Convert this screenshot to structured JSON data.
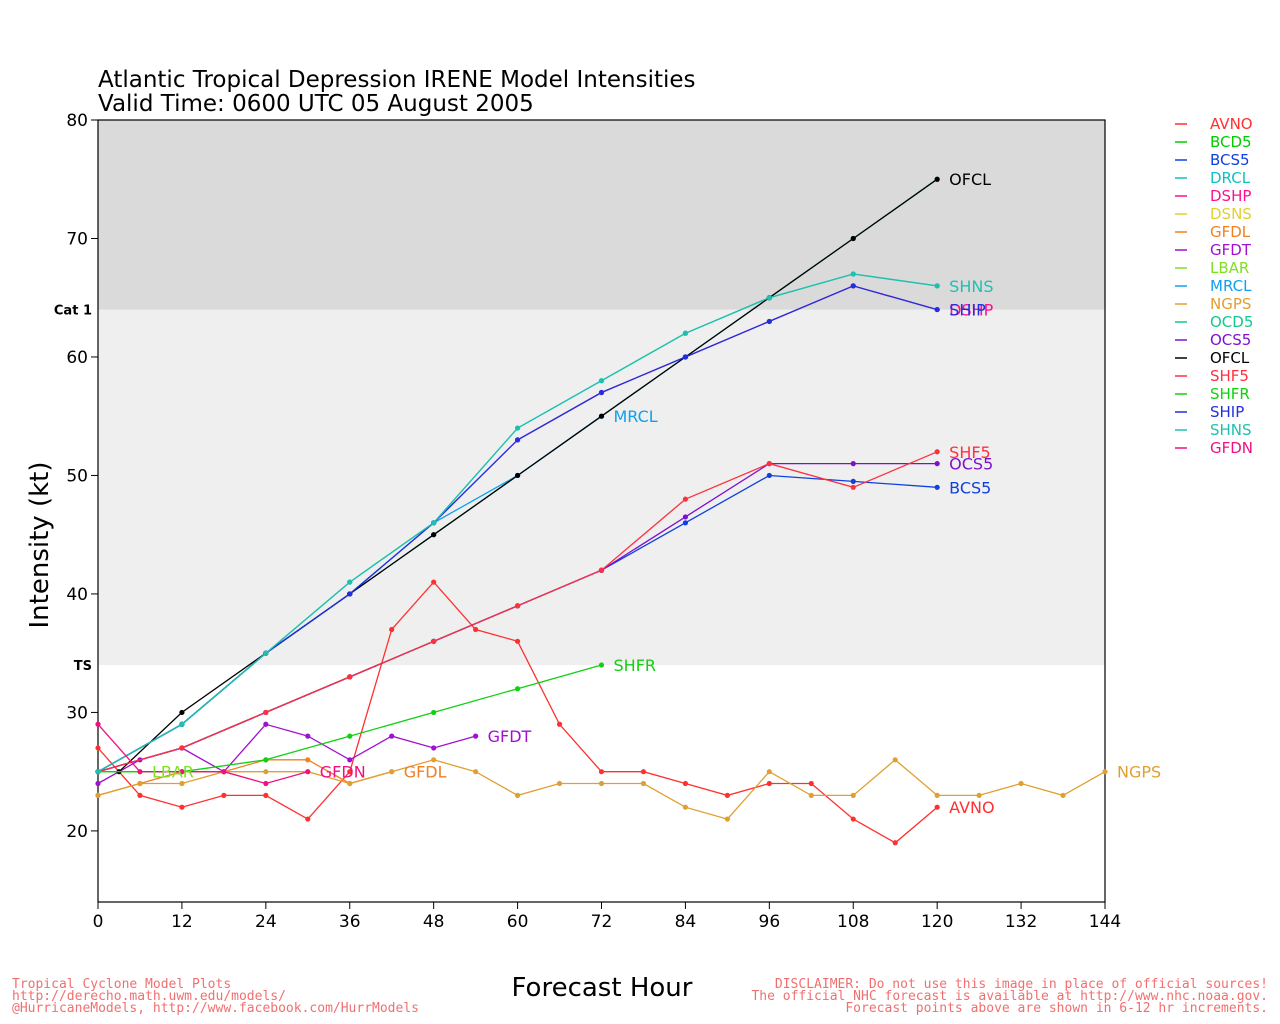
{
  "chart_data": {
    "type": "line",
    "title": "Atlantic Tropical Depression IRENE Model Intensities",
    "subtitle": "Valid Time: 0600 UTC 05 August 2005",
    "xlabel": "Forecast Hour",
    "ylabel": "Intensity (kt)",
    "xlim": [
      0,
      144
    ],
    "ylim": [
      14,
      80
    ],
    "xticks": [
      0,
      12,
      24,
      36,
      48,
      60,
      72,
      84,
      96,
      108,
      120,
      132,
      144
    ],
    "yticks": [
      20,
      30,
      40,
      50,
      60,
      70,
      80
    ],
    "grid": false,
    "legend_position": "right",
    "bands": [
      {
        "from": 14,
        "to": 34,
        "color": "#ffffff"
      },
      {
        "from": 34,
        "to": 64,
        "color": "#efefef",
        "label": "TS"
      },
      {
        "from": 64,
        "to": 80,
        "color": "#dadada",
        "label": "Cat 1"
      }
    ],
    "series": [
      {
        "name": "AVNO",
        "color": "#ff3030",
        "label": "AVNO",
        "x": [
          0,
          6,
          12,
          18,
          24,
          30,
          36,
          42,
          48,
          54,
          60,
          66,
          72,
          78,
          84,
          90,
          96,
          102,
          108,
          114,
          120
        ],
        "values": [
          27,
          23,
          22,
          23,
          23,
          21,
          25,
          37,
          41,
          37,
          36,
          29,
          25,
          25,
          24,
          23,
          24,
          24,
          21,
          19,
          22
        ]
      },
      {
        "name": "BCD5",
        "color": "#00cc00",
        "label": "",
        "x": [
          0,
          12,
          24,
          36,
          48,
          60,
          72
        ],
        "values": [
          25,
          27,
          30,
          33,
          36,
          39,
          42
        ]
      },
      {
        "name": "BCS5",
        "color": "#1040e0",
        "label": "BCS5",
        "x": [
          0,
          12,
          24,
          36,
          48,
          60,
          72,
          84,
          96,
          108,
          120
        ],
        "values": [
          25,
          27,
          30,
          33,
          36,
          39,
          42,
          46,
          50,
          49.5,
          49
        ]
      },
      {
        "name": "DRCL",
        "color": "#10c0c0",
        "label": "",
        "x": [
          0,
          12,
          24,
          36,
          48,
          60,
          72,
          84,
          96,
          108,
          120
        ],
        "values": [
          25,
          29,
          35,
          40,
          45,
          50,
          55,
          60,
          65,
          70,
          75
        ]
      },
      {
        "name": "DSHP",
        "color": "#ff1090",
        "label": "DSHP",
        "x": [
          0,
          12,
          24,
          36,
          48,
          60,
          72,
          84,
          96,
          108,
          120
        ],
        "values": [
          25,
          29,
          35,
          40,
          46,
          53,
          57,
          60,
          63,
          66,
          64
        ]
      },
      {
        "name": "DSNS",
        "color": "#e0d030",
        "label": "",
        "x": [],
        "values": []
      },
      {
        "name": "GFDL",
        "color": "#f08020",
        "label": "GFDL",
        "x": [
          0,
          6,
          12,
          18,
          24,
          30,
          36,
          42
        ],
        "values": [
          23,
          24,
          25,
          25,
          26,
          26,
          24,
          25
        ]
      },
      {
        "name": "GFDT",
        "color": "#a010d0",
        "label": "GFDT",
        "x": [
          0,
          6,
          12,
          18,
          24,
          30,
          36,
          42,
          48,
          54
        ],
        "values": [
          24,
          26,
          27,
          25,
          29,
          28,
          26,
          28,
          27,
          28
        ]
      },
      {
        "name": "LBAR",
        "color": "#80e020",
        "label": "LBAR",
        "x": [
          0,
          6
        ],
        "values": [
          25,
          25
        ]
      },
      {
        "name": "MRCL",
        "color": "#10a0f0",
        "label": "MRCL",
        "x": [
          0,
          12,
          24,
          36,
          48,
          60,
          72
        ],
        "values": [
          25,
          29,
          35,
          40,
          46,
          50,
          55
        ]
      },
      {
        "name": "NGPS",
        "color": "#e0a030",
        "label": "NGPS",
        "x": [
          0,
          6,
          12,
          18,
          24,
          30,
          36,
          42,
          48,
          54,
          60,
          66,
          72,
          78,
          84,
          90,
          96,
          102,
          108,
          114,
          120,
          126,
          132,
          138,
          144
        ],
        "values": [
          23,
          24,
          24,
          25,
          25,
          25,
          24,
          25,
          26,
          25,
          23,
          24,
          24,
          24,
          22,
          21,
          25,
          23,
          23,
          26,
          23,
          23,
          24,
          23,
          25
        ]
      },
      {
        "name": "OCD5",
        "color": "#10c890",
        "label": "",
        "x": [
          0,
          12,
          24,
          36,
          48,
          60,
          72,
          84,
          96,
          108,
          120
        ],
        "values": [
          25,
          29,
          35,
          41,
          46,
          54,
          58,
          62,
          65,
          67,
          66
        ]
      },
      {
        "name": "OCS5",
        "color": "#8010d0",
        "label": "OCS5",
        "x": [
          0,
          12,
          24,
          36,
          48,
          60,
          72,
          84,
          96,
          108,
          120
        ],
        "values": [
          25,
          27,
          30,
          33,
          36,
          39,
          42,
          46.5,
          51,
          51,
          51
        ]
      },
      {
        "name": "OFCL",
        "color": "#000000",
        "label": "OFCL",
        "x": [
          3,
          12,
          24,
          36,
          48,
          60,
          72,
          84,
          96,
          108,
          120
        ],
        "values": [
          25,
          30,
          35,
          40,
          45,
          50,
          55,
          60,
          65,
          70,
          75
        ]
      },
      {
        "name": "SHF5",
        "color": "#ff3040",
        "label": "SHF5",
        "x": [
          0,
          12,
          24,
          36,
          48,
          60,
          72,
          84,
          96,
          108,
          120
        ],
        "values": [
          25,
          27,
          30,
          33,
          36,
          39,
          42,
          48,
          51,
          49,
          52
        ]
      },
      {
        "name": "SHFR",
        "color": "#10d010",
        "label": "SHFR",
        "x": [
          0,
          12,
          24,
          36,
          48,
          60,
          72
        ],
        "values": [
          25,
          25,
          26,
          28,
          30,
          32,
          34
        ]
      },
      {
        "name": "SHIP",
        "color": "#2030e0",
        "label": "SHIP",
        "x": [
          0,
          12,
          24,
          36,
          48,
          60,
          72,
          84,
          96,
          108,
          120
        ],
        "values": [
          25,
          29,
          35,
          40,
          46,
          53,
          57,
          60,
          63,
          66,
          64
        ]
      },
      {
        "name": "SHNS",
        "color": "#20c0b0",
        "label": "SHNS",
        "x": [
          0,
          12,
          24,
          36,
          48,
          60,
          72,
          84,
          96,
          108,
          120
        ],
        "values": [
          25,
          29,
          35,
          41,
          46,
          54,
          58,
          62,
          65,
          67,
          66
        ]
      },
      {
        "name": "GFDN",
        "color": "#f01080",
        "label": "GFDN",
        "x": [
          0,
          6,
          12,
          18,
          24,
          30
        ],
        "values": [
          29,
          25,
          25,
          25,
          24,
          25
        ]
      }
    ]
  },
  "footer": {
    "left": [
      "Tropical Cyclone Model Plots",
      "http://derecho.math.uwm.edu/models/",
      "@HurricaneModels, http://www.facebook.com/HurrModels"
    ],
    "right": [
      "DISCLAIMER: Do not use this image in place of official sources!",
      "The official NHC forecast is available at http://www.nhc.noaa.gov.",
      "Forecast points above are shown in 6-12 hr increments."
    ]
  }
}
